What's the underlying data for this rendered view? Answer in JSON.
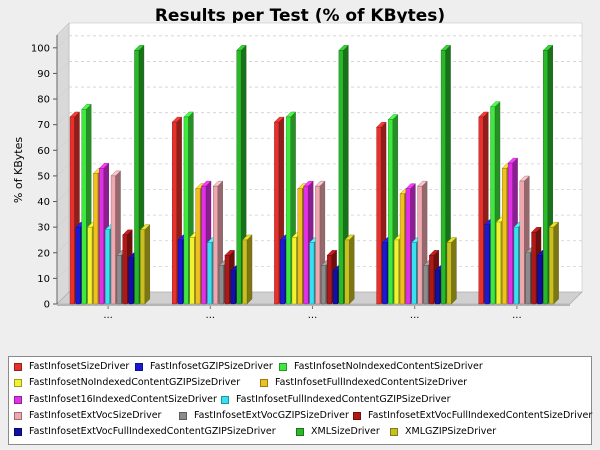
{
  "chart_data": {
    "type": "bar",
    "title": "Results per Test (% of KBytes)",
    "xlabel": "",
    "ylabel": "% of KBytes",
    "ylim": [
      0,
      105
    ],
    "yticks": [
      0,
      10,
      20,
      30,
      40,
      50,
      60,
      70,
      80,
      90,
      100
    ],
    "grid": true,
    "legend_position": "bottom",
    "categories": [
      "...",
      "...",
      "...",
      "...",
      "..."
    ],
    "series": [
      {
        "name": "FastInfosetSizeDriver",
        "color": "#e8302c",
        "values": [
          73,
          71,
          71,
          69,
          73
        ]
      },
      {
        "name": "FastInfosetGZIPSizeDriver",
        "color": "#1a1ad6",
        "values": [
          30,
          25,
          25,
          24,
          31
        ]
      },
      {
        "name": "FastInfosetNoIndexedContentSizeDriver",
        "color": "#3ee83e",
        "values": [
          76,
          73,
          73,
          72,
          77
        ]
      },
      {
        "name": "FastInfosetNoIndexedContentGZIPSizeDriver",
        "color": "#f2f230",
        "values": [
          30,
          26,
          26,
          25,
          32
        ]
      },
      {
        "name": "FastInfosetFullIndexedContentSizeDriver",
        "color": "#f0c020",
        "values": [
          51,
          45,
          45,
          43,
          53
        ]
      },
      {
        "name": "FastInfoset16IndexedContentSizeDriver",
        "color": "#e030e8",
        "values": [
          53,
          46,
          46,
          45,
          55
        ]
      },
      {
        "name": "FastInfosetFullIndexedContentGZIPSizeDriver",
        "color": "#38e0f0",
        "values": [
          29,
          24,
          24,
          24,
          30
        ]
      },
      {
        "name": "FastInfosetExtVocSizeDriver",
        "color": "#f0a8b0",
        "values": [
          50,
          46,
          46,
          46,
          48
        ]
      },
      {
        "name": "FastInfosetExtVocGZIPSizeDriver",
        "color": "#8c8c8c",
        "values": [
          19,
          15,
          15,
          15,
          20
        ]
      },
      {
        "name": "FastInfosetExtVocFullIndexedContentSizeDriver",
        "color": "#b01818",
        "values": [
          27,
          19,
          19,
          19,
          28
        ]
      },
      {
        "name": "FastInfosetExtVocFullIndexedContentGZIPSizeDriver",
        "color": "#1010a8",
        "values": [
          18,
          13,
          13,
          13,
          19
        ]
      },
      {
        "name": "XMLSizeDriver",
        "color": "#28b828",
        "values": [
          99,
          99,
          99,
          99,
          99
        ]
      },
      {
        "name": "XMLGZIPSizeDriver",
        "color": "#c8c020",
        "values": [
          29,
          25,
          25,
          24,
          30
        ]
      }
    ]
  }
}
